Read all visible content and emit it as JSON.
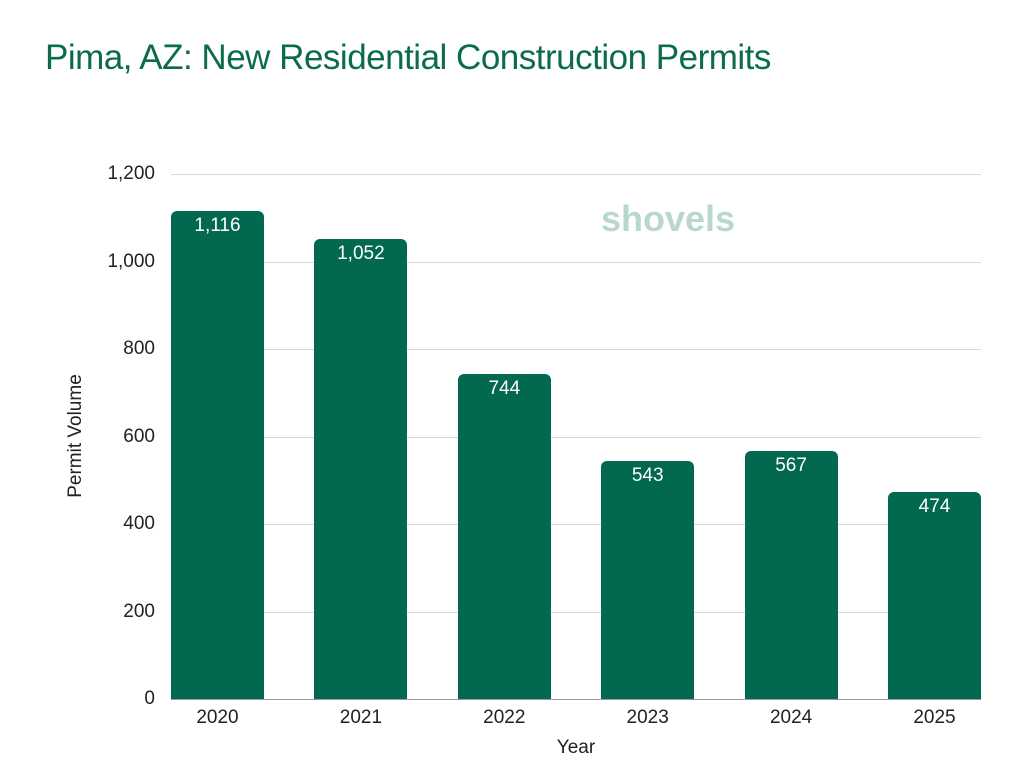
{
  "title": "Pima, AZ: New Residential Construction Permits",
  "watermark": "shovels",
  "colors": {
    "bar": "#036850",
    "title": "#0b6b4f",
    "watermark": "#b8d8cf",
    "watermark_accent": "#f4e2b8"
  },
  "chart_data": {
    "type": "bar",
    "title": "Pima, AZ: New Residential Construction Permits",
    "xlabel": "Year",
    "ylabel": "Permit Volume",
    "categories": [
      "2020",
      "2021",
      "2022",
      "2023",
      "2024",
      "2025"
    ],
    "values": [
      1116,
      1052,
      744,
      543,
      567,
      474
    ],
    "value_labels": [
      "1,116",
      "1,052",
      "744",
      "543",
      "567",
      "474"
    ],
    "ylim": [
      0,
      1200
    ],
    "yticks": [
      "0",
      "200",
      "400",
      "600",
      "800",
      "1,000",
      "1,200"
    ],
    "grid": true,
    "legend": null
  }
}
